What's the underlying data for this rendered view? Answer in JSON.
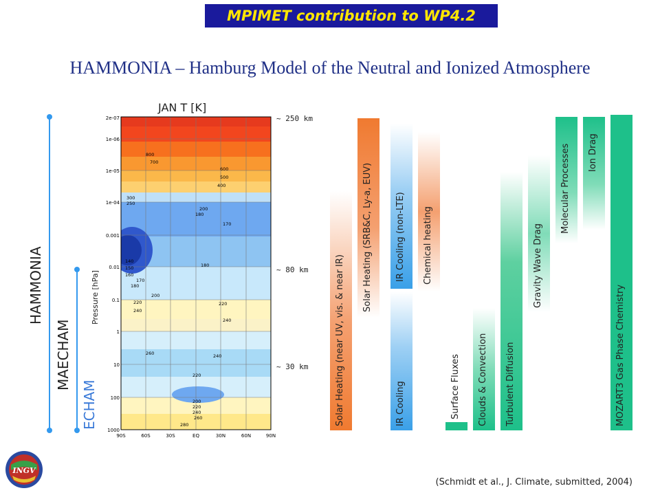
{
  "banner": "MPIMET contribution to WP4.2",
  "title": "HAMMONIA – Hamburg Model of the Neutral and Ionized Atmosphere",
  "models": [
    "HAMMONIA",
    "MAECHAM",
    "ECHAM"
  ],
  "altitude_markers": [
    "~ 250 km",
    "~ 80 km",
    "~ 30 km"
  ],
  "processes": [
    "Solar Heating (near UV, vis. & near IR)",
    "Solar Heating (SRB&C, Ly-a, EUV)",
    "IR Cooling",
    "IR Cooling (non-LTE)",
    "Chemical heating",
    "Surface Fluxes",
    "Clouds & Convection",
    "Turbulent Diffusion",
    "Gravity Wave Drag",
    "Molecular Processes",
    "Ion Drag",
    "MOZART3 Gas Phase Chemistry"
  ],
  "colors": {
    "banner_bg": "#1a1a9c",
    "banner_text": "#ffe600",
    "title": "#1f2f86",
    "model_line": "#3399ee",
    "solar": "#f07a30",
    "ir": "#3aa0e8",
    "chemical": "#f07a30",
    "green": "#1ec08a"
  },
  "chart_data": {
    "type": "heatmap",
    "title": "JAN      T [K]",
    "ylabel": "Pressure [hPa]",
    "x_ticks": [
      "90S",
      "60S",
      "30S",
      "EQ",
      "30N",
      "60N",
      "90N"
    ],
    "y_ticks": [
      "2e-07",
      "1e-06",
      "1e-05",
      "1e-04",
      "0.001",
      "0.01",
      "0.1",
      "1",
      "10",
      "100",
      "1000"
    ],
    "contour_labels": [
      "800",
      "700",
      "600",
      "500",
      "400",
      "300",
      "250",
      "200",
      "180",
      "170",
      "140",
      "150",
      "160",
      "170",
      "180",
      "200",
      "220",
      "240",
      "180",
      "220",
      "240",
      "260",
      "240",
      "220",
      "200",
      "220",
      "240",
      "260",
      "280"
    ]
  },
  "citation": "(Schmidt et al., J. Climate, submitted, 2004)",
  "logo_text": "INGV"
}
